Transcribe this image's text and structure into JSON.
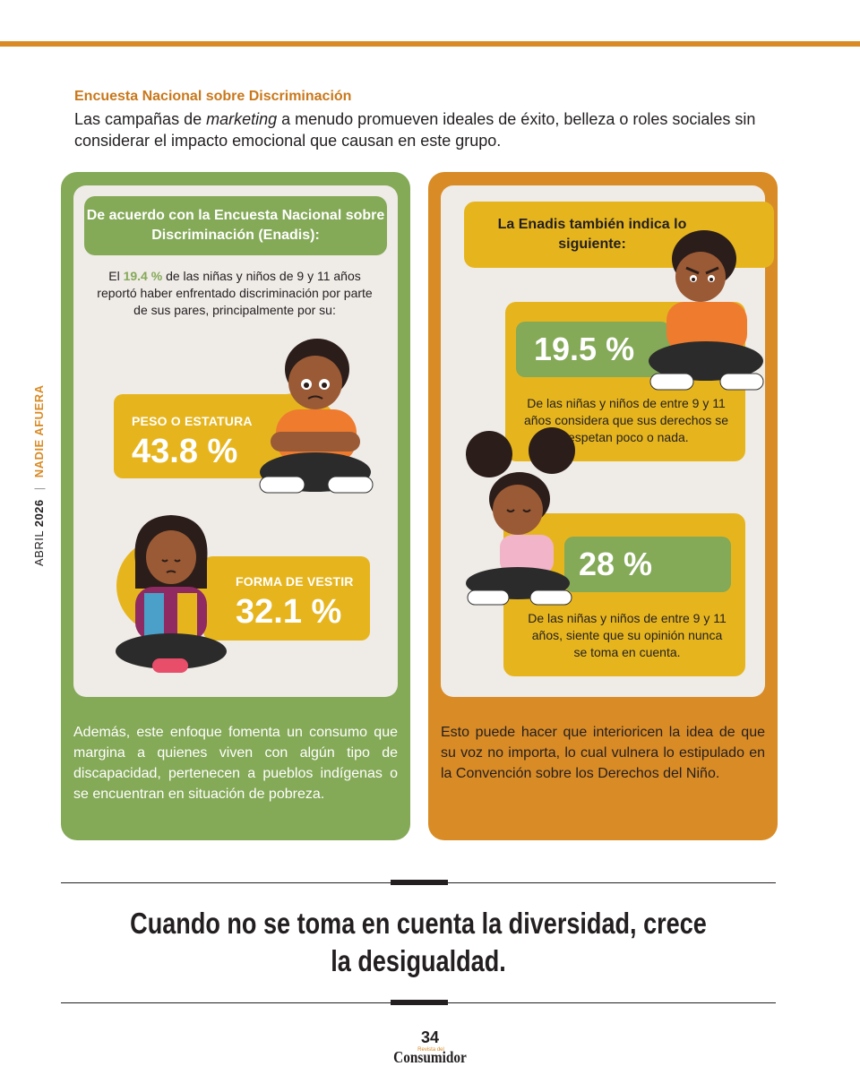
{
  "side": {
    "month": "ABRIL",
    "year": "2026",
    "section": "NADIE AFUERA"
  },
  "intro": {
    "kicker": "Encuesta Nacional sobre Discriminación",
    "text_pre": "Las campañas de ",
    "text_em": "marketing",
    "text_post": " a menudo promueven ideales de éxito, belleza o roles sociales sin considerar el impacto emocional que causan en este grupo."
  },
  "left_panel": {
    "header": "De acuerdo con la Encuesta Nacional sobre Discriminación (Enadis):",
    "desc_pre": "El ",
    "desc_highlight": "19.4 %",
    "desc_post": " de las niñas y niños de 9 y 11 años reportó haber enfrentado discriminación por parte de sus pares, principalmente por su:",
    "stat1_label": "PESO O ESTATURA",
    "stat1_value": "43.8 %",
    "stat2_label": "FORMA DE VESTIR",
    "stat2_value": "32.1 %",
    "footer": "Además, este enfoque fomenta un consumo que margina a quienes viven con algún tipo de discapacidad, pertenecen a pueblos indígenas o se encuentran en situación de pobreza."
  },
  "right_panel": {
    "header": "La Enadis también indica lo siguiente:",
    "stat1_value": "19.5 %",
    "stat1_desc": "De las niñas y niños de entre 9 y 11 años considera que sus derechos se respetan poco o nada.",
    "stat2_value": "28 %",
    "stat2_desc": "De las niñas y niños de entre 9 y 11 años, siente que su opinión nunca se toma en cuenta.",
    "footer": "Esto puede hacer que interioricen la idea de que su voz no importa, lo cual vulnera lo estipulado en la Convención sobre los Derechos del Niño."
  },
  "quote": "Cuando no se toma en cuenta la diversidad, crece la desigualdad.",
  "footer": {
    "page": "34",
    "brand_small": "Revista del",
    "brand": "Consumidor"
  },
  "colors": {
    "orange": "#d98b26",
    "green": "#84a957",
    "yellow": "#e6b51e",
    "beige": "#efebe7"
  }
}
